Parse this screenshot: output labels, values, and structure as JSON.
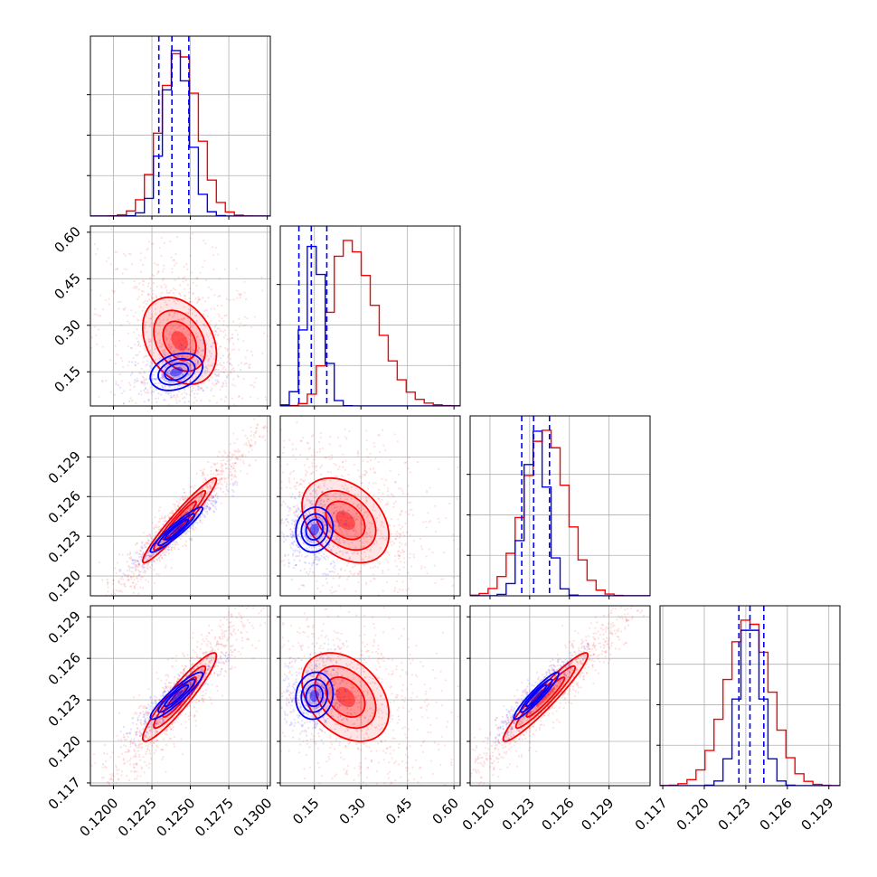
{
  "chart_data": {
    "type": "corner",
    "title": "",
    "parameters": [
      "",
      "",
      "",
      ""
    ],
    "grid": true,
    "colors": {
      "blue": "#0000ff",
      "red": "#ff0000"
    },
    "series": [
      {
        "color": "blue",
        "means": [
          0.1241,
          0.15,
          0.1235,
          0.1233
        ],
        "sigmas": [
          0.00085,
          0.03,
          0.00085,
          0.00085
        ],
        "corr": [
          [
            1,
            0.3,
            0.94,
            0.92
          ],
          [
            0.3,
            1,
            0.1,
            0.1
          ],
          [
            0.94,
            0.1,
            1,
            0.94
          ],
          [
            0.92,
            0.1,
            0.94,
            1
          ]
        ]
      },
      {
        "color": "red",
        "means": [
          0.1243,
          0.25,
          0.1242,
          0.1232
        ],
        "sigmas": [
          0.0012,
          0.07,
          0.0016,
          0.0016
        ],
        "corr": [
          [
            1,
            -0.3,
            0.96,
            0.93
          ],
          [
            -0.3,
            1,
            -0.35,
            -0.35
          ],
          [
            0.96,
            -0.35,
            1,
            0.95
          ],
          [
            0.93,
            -0.35,
            0.95,
            1
          ]
        ]
      }
    ],
    "quantile_lines": [
      {
        "panel": "1",
        "values": [
          0.12295,
          0.1238,
          0.1249
        ]
      },
      {
        "panel": "2",
        "values": [
          0.1,
          0.14,
          0.19
        ]
      },
      {
        "panel": "3",
        "values": [
          0.1224,
          0.1233,
          0.1245
        ]
      },
      {
        "panel": "4",
        "values": [
          0.1225,
          0.1233,
          0.1243
        ]
      }
    ],
    "axes": [
      {
        "range": [
          0.1185,
          0.1302
        ],
        "ticks": [
          "0.1200",
          "0.1225",
          "0.1250",
          "0.1275",
          "0.1300"
        ],
        "tick_values": [
          0.12,
          0.1225,
          0.125,
          0.1275,
          0.13
        ]
      },
      {
        "range": [
          0.04,
          0.62
        ],
        "ticks": [
          "0.15",
          "0.30",
          "0.45",
          "0.60"
        ],
        "tick_values": [
          0.15,
          0.3,
          0.45,
          0.6
        ]
      },
      {
        "range": [
          0.1185,
          0.1321
        ],
        "ticks": [
          "0.120",
          "0.123",
          "0.126",
          "0.129"
        ],
        "tick_values": [
          0.12,
          0.123,
          0.126,
          0.129
        ]
      },
      {
        "range": [
          0.1168,
          0.1298
        ],
        "ticks": [
          "0.117",
          "0.120",
          "0.123",
          "0.126",
          "0.129"
        ],
        "tick_values": [
          0.117,
          0.12,
          0.123,
          0.126,
          0.129
        ]
      }
    ]
  }
}
